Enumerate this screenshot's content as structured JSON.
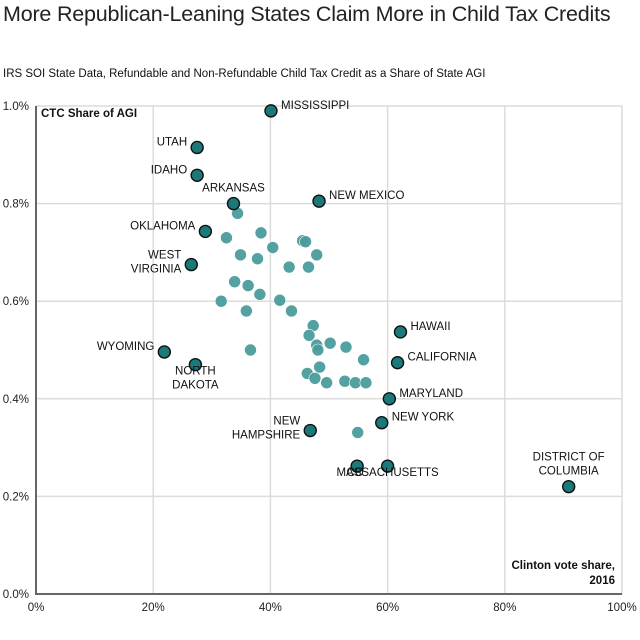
{
  "chart_data": {
    "type": "scatter",
    "title": "More Republican-Leaning States Claim More in Child Tax Credits",
    "subtitle": "IRS SOI State Data, Refundable and Non-Refundable Child Tax Credit as a Share of State AGI",
    "xlabel": "Clinton vote share, 2016",
    "ylabel": "CTC Share of AGI",
    "xlim": [
      0,
      100
    ],
    "ylim": [
      0,
      1.0
    ],
    "x_ticks": [
      "0%",
      "20%",
      "40%",
      "60%",
      "80%",
      "100%"
    ],
    "y_ticks": [
      "0.0%",
      "0.2%",
      "0.4%",
      "0.6%",
      "0.8%",
      "1.0%"
    ],
    "grid": true,
    "colors": {
      "labeled": "#1a7a7a",
      "unlabeled": "#4a9c9c",
      "stroke": "#111111"
    },
    "labeled_points": [
      {
        "name": "MISSISSIPPI",
        "x": 40.1,
        "y": 0.99,
        "label_lines": [
          "MISSISSIPPI"
        ],
        "anchor": "right"
      },
      {
        "name": "UTAH",
        "x": 27.5,
        "y": 0.915,
        "label_lines": [
          "UTAH"
        ],
        "anchor": "left"
      },
      {
        "name": "IDAHO",
        "x": 27.5,
        "y": 0.858,
        "label_lines": [
          "IDAHO"
        ],
        "anchor": "left"
      },
      {
        "name": "ARKANSAS",
        "x": 33.7,
        "y": 0.8,
        "label_lines": [
          "ARKANSAS"
        ],
        "anchor": "above"
      },
      {
        "name": "NEW MEXICO",
        "x": 48.3,
        "y": 0.805,
        "label_lines": [
          "NEW MEXICO"
        ],
        "anchor": "right"
      },
      {
        "name": "OKLAHOMA",
        "x": 28.9,
        "y": 0.743,
        "label_lines": [
          "OKLAHOMA"
        ],
        "anchor": "left"
      },
      {
        "name": "WEST VIRGINIA",
        "x": 26.5,
        "y": 0.675,
        "label_lines": [
          "WEST",
          "VIRGINIA"
        ],
        "anchor": "left"
      },
      {
        "name": "WYOMING",
        "x": 21.9,
        "y": 0.496,
        "label_lines": [
          "WYOMING"
        ],
        "anchor": "left"
      },
      {
        "name": "NORTH DAKOTA",
        "x": 27.2,
        "y": 0.47,
        "label_lines": [
          "NORTH",
          "DAKOTA"
        ],
        "anchor": "below"
      },
      {
        "name": "HAWAII",
        "x": 62.2,
        "y": 0.537,
        "label_lines": [
          "HAWAII"
        ],
        "anchor": "right"
      },
      {
        "name": "CALIFORNIA",
        "x": 61.7,
        "y": 0.474,
        "label_lines": [
          "CALIFORNIA"
        ],
        "anchor": "right"
      },
      {
        "name": "MARYLAND",
        "x": 60.3,
        "y": 0.4,
        "label_lines": [
          "MARYLAND"
        ],
        "anchor": "right"
      },
      {
        "name": "NEW YORK",
        "x": 59.0,
        "y": 0.351,
        "label_lines": [
          "NEW YORK"
        ],
        "anchor": "right"
      },
      {
        "name": "NEW HAMPSHIRE",
        "x": 46.8,
        "y": 0.335,
        "label_lines": [
          "NEW",
          "HAMPSHIRE"
        ],
        "anchor": "left"
      },
      {
        "name": "COLORADO",
        "x": 54.8,
        "y": 0.262,
        "label_lines": [
          "CO"
        ],
        "anchor": "below-left"
      },
      {
        "name": "MASSACHUSETTS",
        "x": 60.0,
        "y": 0.262,
        "label_lines": [
          "MASSACHUSETTS"
        ],
        "anchor": "below"
      },
      {
        "name": "DISTRICT OF COLUMBIA",
        "x": 90.9,
        "y": 0.22,
        "label_lines": [
          "DISTRICT OF",
          "COLUMBIA"
        ],
        "anchor": "above"
      }
    ],
    "unlabeled_points": [
      {
        "x": 34.4,
        "y": 0.78
      },
      {
        "x": 32.5,
        "y": 0.73
      },
      {
        "x": 38.4,
        "y": 0.74
      },
      {
        "x": 40.4,
        "y": 0.71
      },
      {
        "x": 34.9,
        "y": 0.695
      },
      {
        "x": 37.8,
        "y": 0.687
      },
      {
        "x": 45.5,
        "y": 0.724
      },
      {
        "x": 46.0,
        "y": 0.722
      },
      {
        "x": 47.9,
        "y": 0.695
      },
      {
        "x": 43.2,
        "y": 0.67
      },
      {
        "x": 46.5,
        "y": 0.67
      },
      {
        "x": 33.9,
        "y": 0.64
      },
      {
        "x": 36.2,
        "y": 0.632
      },
      {
        "x": 38.2,
        "y": 0.614
      },
      {
        "x": 31.6,
        "y": 0.6
      },
      {
        "x": 41.6,
        "y": 0.602
      },
      {
        "x": 35.9,
        "y": 0.58
      },
      {
        "x": 43.6,
        "y": 0.58
      },
      {
        "x": 36.6,
        "y": 0.5
      },
      {
        "x": 47.3,
        "y": 0.55
      },
      {
        "x": 46.6,
        "y": 0.53
      },
      {
        "x": 47.9,
        "y": 0.51
      },
      {
        "x": 48.1,
        "y": 0.5
      },
      {
        "x": 50.2,
        "y": 0.514
      },
      {
        "x": 52.9,
        "y": 0.506
      },
      {
        "x": 55.9,
        "y": 0.48
      },
      {
        "x": 48.4,
        "y": 0.465
      },
      {
        "x": 46.3,
        "y": 0.452
      },
      {
        "x": 47.6,
        "y": 0.442
      },
      {
        "x": 49.6,
        "y": 0.433
      },
      {
        "x": 52.7,
        "y": 0.436
      },
      {
        "x": 54.5,
        "y": 0.433
      },
      {
        "x": 56.3,
        "y": 0.433
      },
      {
        "x": 54.9,
        "y": 0.331
      }
    ]
  }
}
